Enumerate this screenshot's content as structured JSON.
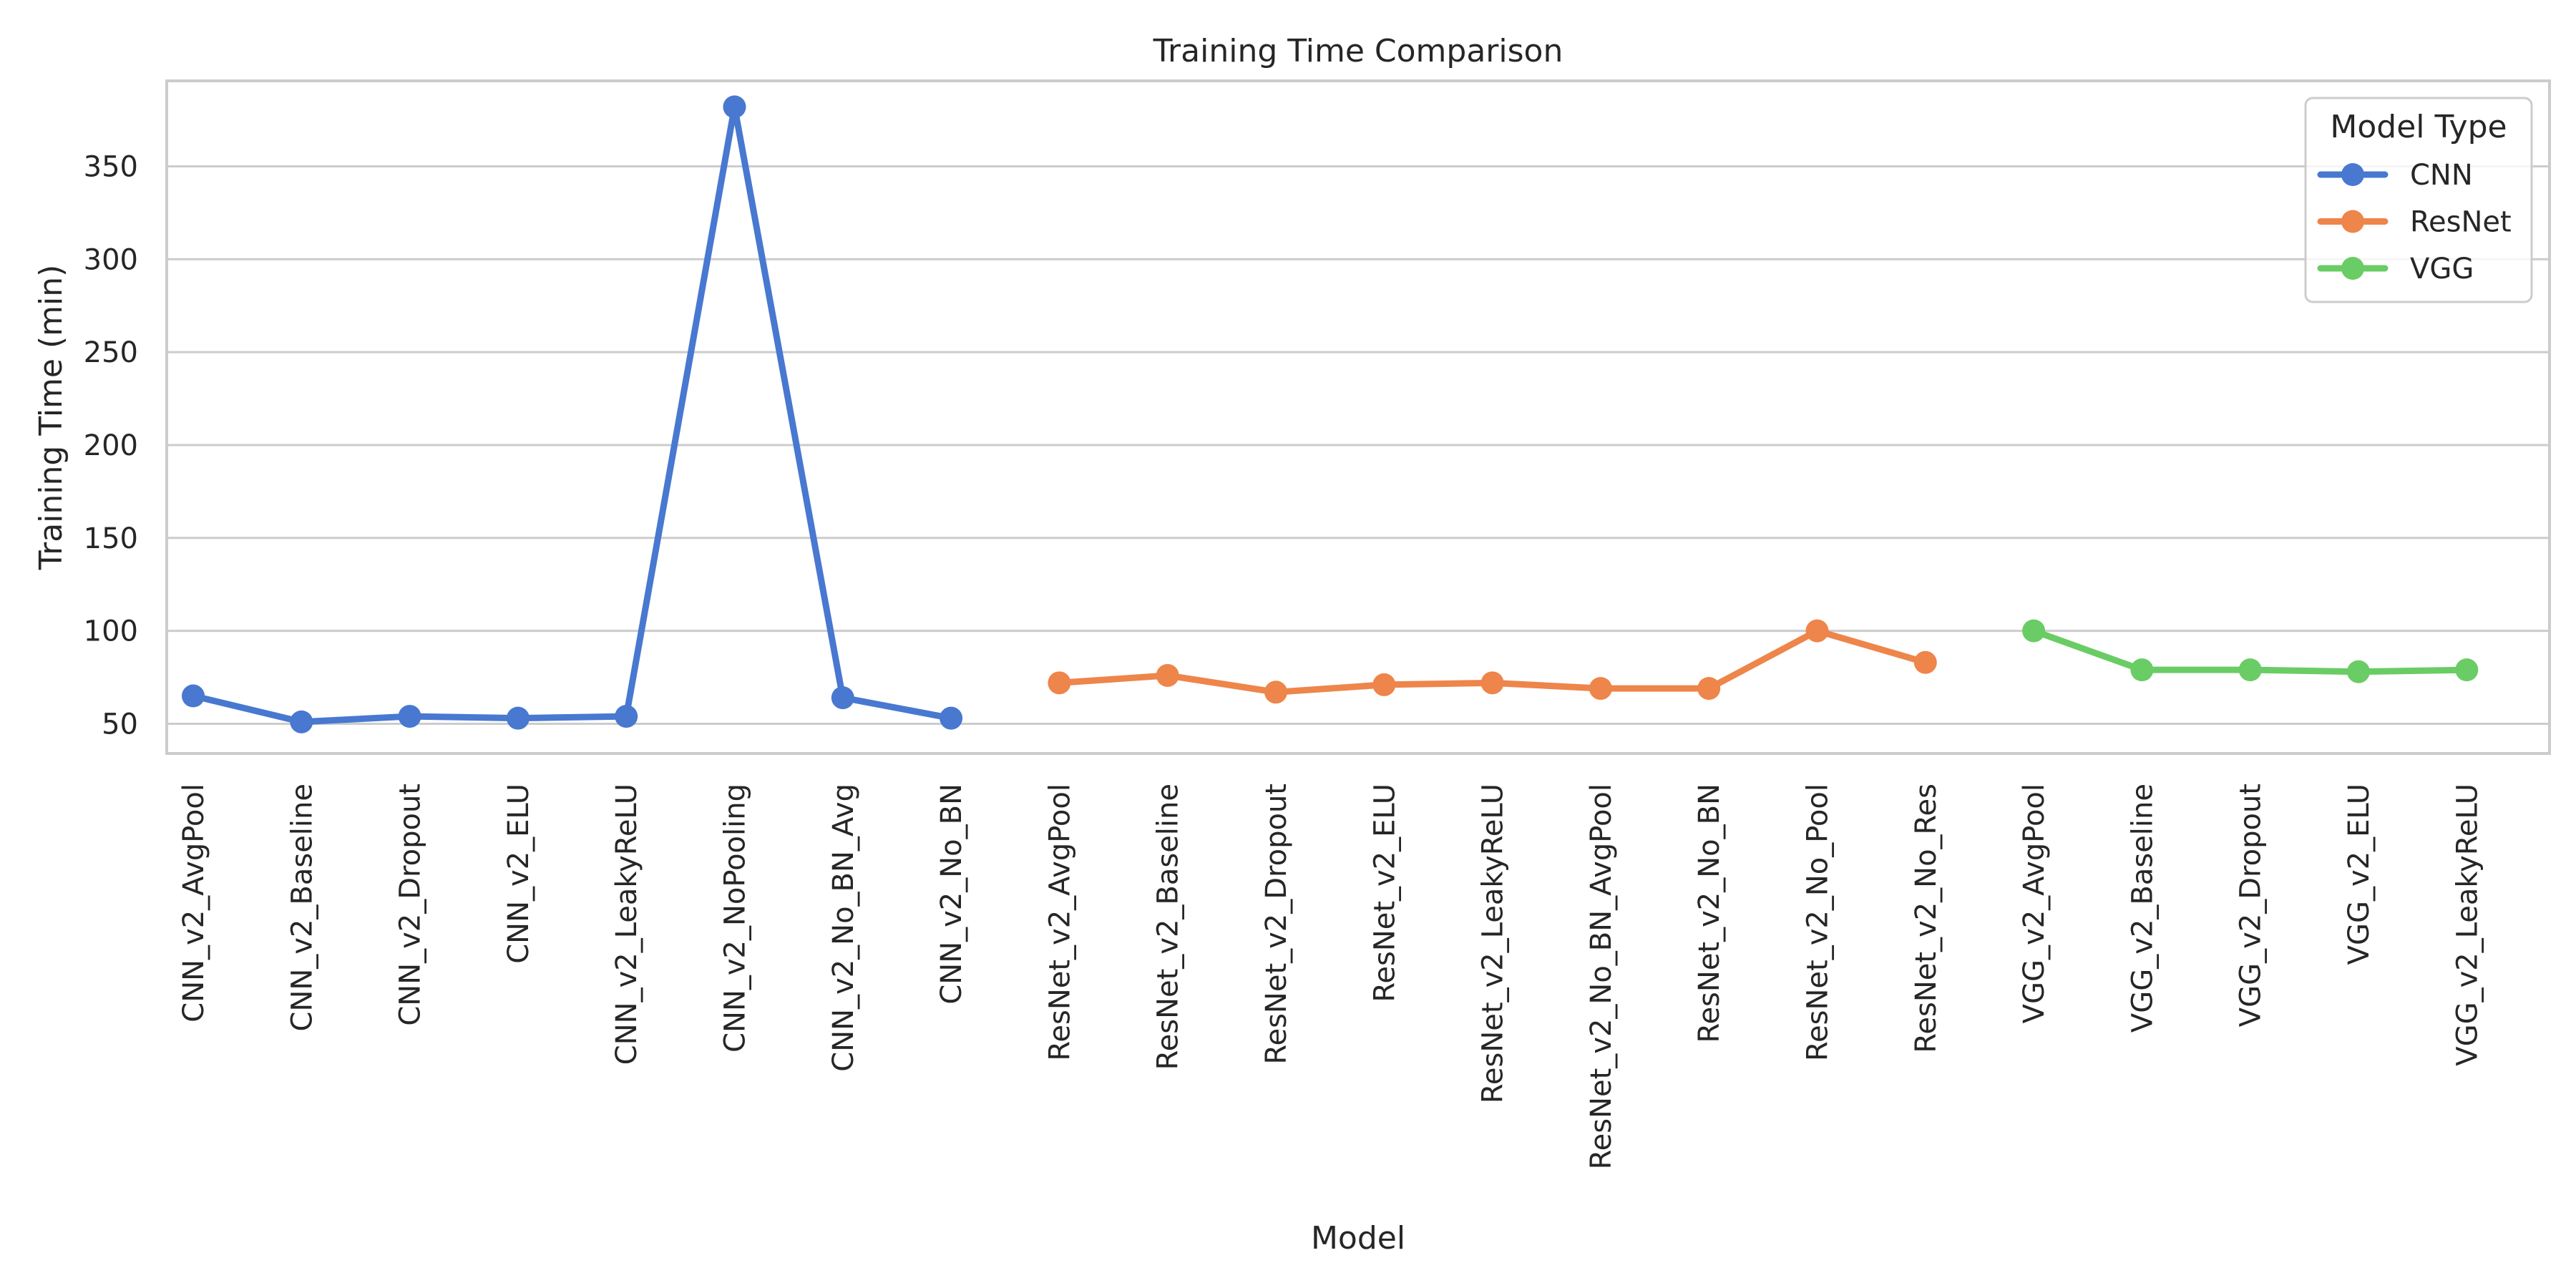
{
  "chart_data": {
    "type": "line",
    "title": "Training Time Comparison",
    "xlabel": "Model",
    "ylabel": "Training Time (min)",
    "ylim": [
      34,
      396
    ],
    "yticks": [
      50,
      100,
      150,
      200,
      250,
      300,
      350
    ],
    "grid": "horizontal",
    "legend": {
      "title": "Model Type",
      "placement": "top-right"
    },
    "categories": [
      "CNN_v2_AvgPool",
      "CNN_v2_Baseline",
      "CNN_v2_Dropout",
      "CNN_v2_ELU",
      "CNN_v2_LeakyReLU",
      "CNN_v2_NoPooling",
      "CNN_v2_No_BN_Avg",
      "CNN_v2_No_BN",
      "ResNet_v2_AvgPool",
      "ResNet_v2_Baseline",
      "ResNet_v2_Dropout",
      "ResNet_v2_ELU",
      "ResNet_v2_LeakyReLU",
      "ResNet_v2_No_BN_AvgPool",
      "ResNet_v2_No_BN",
      "ResNet_v2_No_Pool",
      "ResNet_v2_No_Res",
      "VGG_v2_AvgPool",
      "VGG_v2_Baseline",
      "VGG_v2_Dropout",
      "VGG_v2_ELU",
      "VGG_v2_LeakyReLU"
    ],
    "series": [
      {
        "name": "CNN",
        "color": "#4878d0",
        "x": [
          "CNN_v2_AvgPool",
          "CNN_v2_Baseline",
          "CNN_v2_Dropout",
          "CNN_v2_ELU",
          "CNN_v2_LeakyReLU",
          "CNN_v2_NoPooling",
          "CNN_v2_No_BN_Avg",
          "CNN_v2_No_BN"
        ],
        "values": [
          65,
          51,
          54,
          53,
          54,
          382,
          64,
          53
        ]
      },
      {
        "name": "ResNet",
        "color": "#ee854a",
        "x": [
          "ResNet_v2_AvgPool",
          "ResNet_v2_Baseline",
          "ResNet_v2_Dropout",
          "ResNet_v2_ELU",
          "ResNet_v2_LeakyReLU",
          "ResNet_v2_No_BN_AvgPool",
          "ResNet_v2_No_BN",
          "ResNet_v2_No_Pool",
          "ResNet_v2_No_Res"
        ],
        "values": [
          72,
          76,
          67,
          71,
          72,
          69,
          69,
          100,
          83
        ]
      },
      {
        "name": "VGG",
        "color": "#6acc64",
        "x": [
          "VGG_v2_AvgPool",
          "VGG_v2_Baseline",
          "VGG_v2_Dropout",
          "VGG_v2_ELU",
          "VGG_v2_LeakyReLU"
        ],
        "values": [
          100,
          79,
          79,
          78,
          79
        ]
      }
    ]
  }
}
